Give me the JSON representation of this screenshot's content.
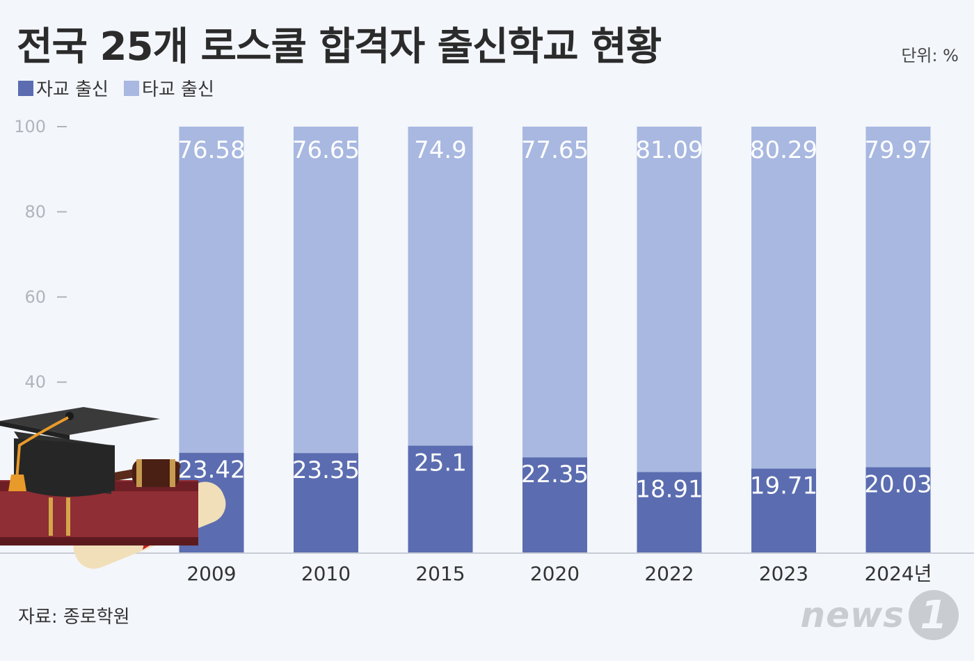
{
  "header": {
    "title": "전국 25개 로스쿨 합격자 출신학교 현황",
    "unit": "단위: %"
  },
  "legend": {
    "items": [
      {
        "label": "자교 출신",
        "color": "#5b6db0"
      },
      {
        "label": "타교 출신",
        "color": "#a8b8e0"
      }
    ]
  },
  "footer": {
    "source": "자료: 종로학원",
    "logo_text": "news",
    "logo_badge": "1"
  },
  "chart_data": {
    "type": "bar",
    "stacked": true,
    "categories": [
      "2009",
      "2010",
      "2015",
      "2020",
      "2022",
      "2023",
      "2024년"
    ],
    "series": [
      {
        "name": "자교 출신",
        "color": "#5b6db0",
        "values": [
          23.42,
          23.35,
          25.1,
          22.35,
          18.91,
          19.71,
          20.03
        ]
      },
      {
        "name": "타교 출신",
        "color": "#a8b8e0",
        "values": [
          76.58,
          76.65,
          74.9,
          77.65,
          81.09,
          80.29,
          79.97
        ]
      }
    ],
    "ylim": [
      0,
      100
    ],
    "yticks": [
      20,
      40,
      60,
      80,
      100
    ],
    "grid": false,
    "legend_position": "top-left"
  }
}
